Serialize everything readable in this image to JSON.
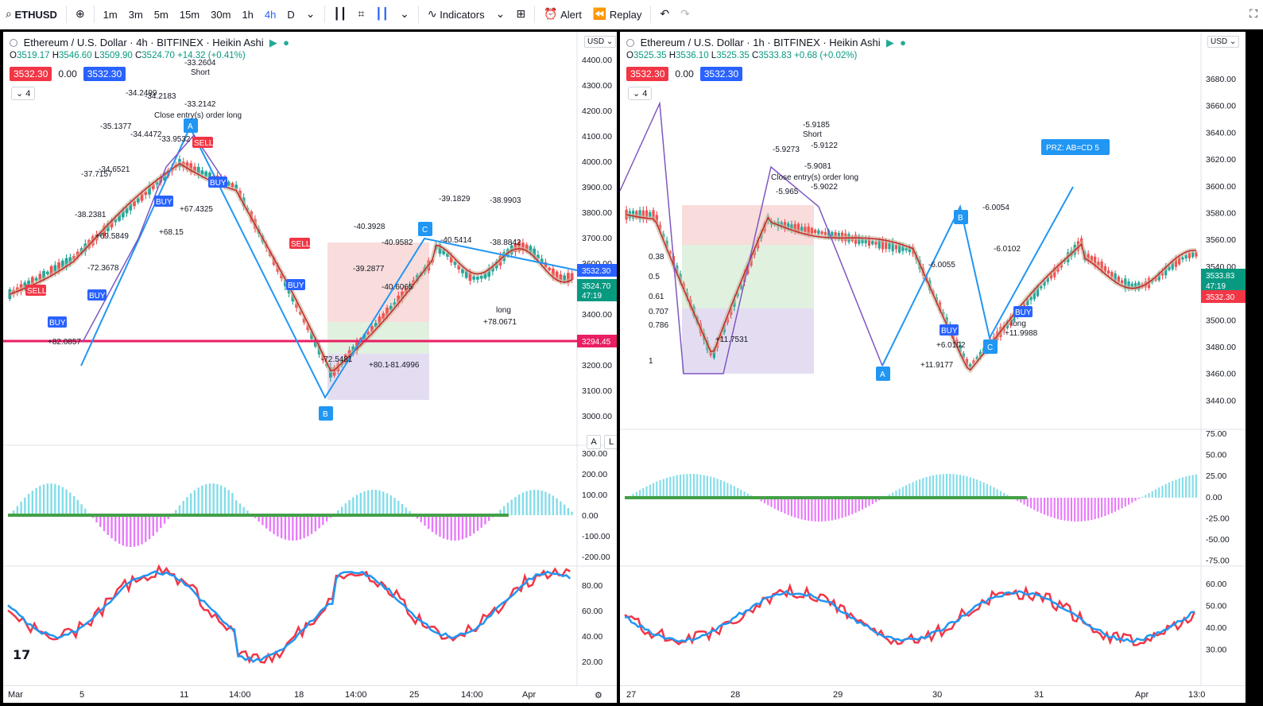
{
  "toolbar": {
    "symbol": "ETHUSD",
    "intervals": [
      "1m",
      "3m",
      "5m",
      "15m",
      "30m",
      "1h",
      "4h",
      "D"
    ],
    "active_interval": "4h",
    "indicators_label": "Indicators",
    "alert_label": "Alert",
    "replay_label": "Replay"
  },
  "left_chart": {
    "title": "Ethereum / U.S. Dollar · 4h · BITFINEX · Heikin Ashi",
    "ohlc": {
      "o": "3519.17",
      "h": "3546.60",
      "l": "3509.90",
      "c": "3524.70",
      "chg": "+14.32 (+0.41%)"
    },
    "bid": "3532.30",
    "spread": "0.00",
    "ask": "3532.30",
    "collapse_count": "4",
    "currency": "USD",
    "price_ticks": [
      "4400.00",
      "4300.00",
      "4200.00",
      "4100.00",
      "4000.00",
      "3900.00",
      "3800.00",
      "3700.00",
      "3600.00",
      "3500.00",
      "3400.00",
      "3300.00",
      "3200.00",
      "3100.00",
      "3000.00"
    ],
    "price_badges": {
      "last": "3532.30",
      "current": "3524.70",
      "countdown": "47:19",
      "line": "3294.45"
    },
    "osc_ticks": [
      "300.00",
      "200.00",
      "100.00",
      "0.00",
      "-100.00",
      "-200.00"
    ],
    "rsi_ticks": [
      "80.00",
      "60.00",
      "40.00",
      "20.00"
    ],
    "time_ticks": [
      "Mar",
      "5",
      "11",
      "14:00",
      "18",
      "14:00",
      "25",
      "14:00",
      "Apr"
    ],
    "scale_buttons": [
      "A",
      "L"
    ],
    "pattern_points": [
      "A",
      "B",
      "C"
    ],
    "annotations": [
      "-33.2604",
      "Short",
      "-34.2499",
      "-34.2183",
      "-33.2142",
      "Close entry(s) order long",
      "-35.1377",
      "-34.4472",
      "-33.9532",
      "-34.6521",
      "-37.7157",
      "-38.2381",
      "+69.5849",
      "+68.15",
      "+67.4325",
      "-72.3678",
      "+82.0857",
      "-40.3928",
      "-40.9582",
      "-39.2877",
      "-40.6065",
      "-72.5481",
      "+80.1",
      "-81.4996",
      "-39.1829",
      "-40.5414",
      "-38.9903",
      "-38.8842",
      "+78.0671",
      "long"
    ]
  },
  "right_chart": {
    "title": "Ethereum / U.S. Dollar · 1h · BITFINEX · Heikin Ashi",
    "ohlc": {
      "o": "3525.35",
      "h": "3536.10",
      "l": "3525.35",
      "c": "3533.83",
      "chg": "+0.68 (+0.02%)"
    },
    "bid": "3532.30",
    "spread": "0.00",
    "ask": "3532.30",
    "collapse_count": "4",
    "currency": "USD",
    "price_ticks": [
      "3680.00",
      "3660.00",
      "3640.00",
      "3620.00",
      "3600.00",
      "3580.00",
      "3560.00",
      "3540.00",
      "3520.00",
      "3500.00",
      "3480.00",
      "3460.00",
      "3440.00"
    ],
    "price_badges": {
      "current": "3533.83",
      "countdown": "47:19",
      "last": "3532.30"
    },
    "osc_ticks": [
      "75.00",
      "50.00",
      "25.00",
      "0.00",
      "-25.00",
      "-50.00",
      "-75.00"
    ],
    "rsi_ticks": [
      "60.00",
      "50.00",
      "40.00",
      "30.00"
    ],
    "time_ticks": [
      "27",
      "28",
      "29",
      "30",
      "31",
      "Apr",
      "13:0"
    ],
    "prz_label": "PRZ: AB=CD 5",
    "pattern_points": [
      "A",
      "B",
      "C"
    ],
    "fib_labels": [
      "0.38",
      "0.5",
      "0.61",
      "0.707",
      "0.786",
      "1"
    ],
    "annotations": [
      "-5.9185",
      "Short",
      "-5.9273",
      "-5.9122",
      "-5.9081",
      "-5.965",
      "-5.9022",
      "Close entry(s) order long",
      "-6.0054",
      "-6.0102",
      "-6.0055",
      "+11.7531",
      "+11.9177",
      "+6.0102",
      "+11.9988",
      "long"
    ]
  },
  "colors": {
    "accent": "#2962ff",
    "sell": "#f23645",
    "buy": "#2962ff",
    "up": "#089981",
    "rsi_red": "#f23645",
    "rsi_blue": "#2196f3",
    "hline": "#e91e63"
  }
}
